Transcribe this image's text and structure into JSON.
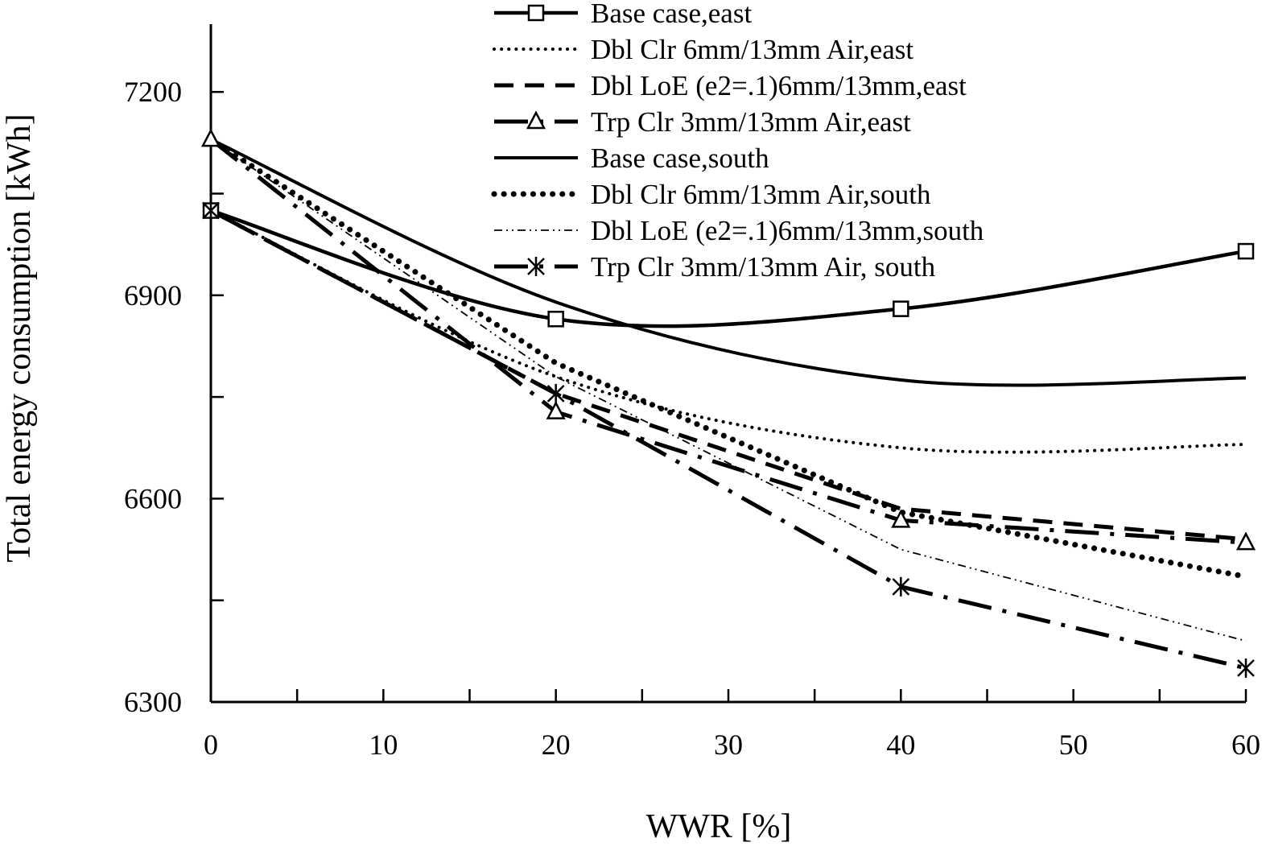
{
  "chart_data": {
    "type": "line",
    "title": "",
    "xlabel": "WWR [%]",
    "ylabel": "Total energy consumption [kWh]",
    "xlim": [
      0,
      60
    ],
    "ylim": [
      6300,
      7300
    ],
    "x_ticks": [
      0,
      10,
      20,
      30,
      40,
      50,
      60
    ],
    "y_ticks": [
      6300,
      6600,
      6900,
      7200
    ],
    "grid": false,
    "legend_position": "top-right",
    "series": [
      {
        "name": "Base case,east",
        "x": [
          0,
          20,
          40,
          60
        ],
        "values": [
          7025,
          6865,
          6880,
          6965
        ],
        "color": "#000000",
        "style": "solid-thick",
        "marker": "square"
      },
      {
        "name": "Dbl Clr 6mm/13mm Air,east",
        "x": [
          0,
          20,
          40,
          60
        ],
        "values": [
          7025,
          6780,
          6675,
          6680
        ],
        "color": "#000000",
        "style": "dotted-fine",
        "marker": "none"
      },
      {
        "name": "Dbl LoE (e2=.1)6mm/13mm,east",
        "x": [
          0,
          20,
          40,
          60
        ],
        "values": [
          7025,
          6755,
          6585,
          6540
        ],
        "color": "#000000",
        "style": "dashed",
        "marker": "none"
      },
      {
        "name": "Trp Clr 3mm/13mm Air,east",
        "x": [
          0,
          20,
          40,
          60
        ],
        "values": [
          7130,
          6728,
          6568,
          6535
        ],
        "color": "#000000",
        "style": "long-dash-dot",
        "marker": "triangle"
      },
      {
        "name": "Base case,south",
        "x": [
          0,
          20,
          40,
          60
        ],
        "values": [
          7130,
          6890,
          6775,
          6778
        ],
        "color": "#000000",
        "style": "solid",
        "marker": "none"
      },
      {
        "name": "Dbl Clr 6mm/13mm Air,south",
        "x": [
          0,
          20,
          40,
          60
        ],
        "values": [
          7130,
          6800,
          6580,
          6485
        ],
        "color": "#000000",
        "style": "dotted-bold",
        "marker": "none"
      },
      {
        "name": "Dbl LoE (e2=.1)6mm/13mm,south",
        "x": [
          0,
          20,
          40,
          60
        ],
        "values": [
          7130,
          6780,
          6525,
          6390
        ],
        "color": "#000000",
        "style": "dash-dot-dot-thin",
        "marker": "none"
      },
      {
        "name": "Trp Clr 3mm/13mm Air, south",
        "x": [
          0,
          20,
          40,
          60
        ],
        "values": [
          7025,
          6755,
          6470,
          6350
        ],
        "color": "#000000",
        "style": "long-dash-dot",
        "marker": "asterisk"
      }
    ]
  }
}
